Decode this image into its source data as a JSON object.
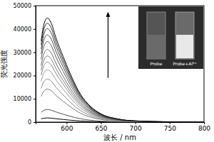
{
  "chart_data": {
    "type": "line",
    "x_label": "波长 / nm",
    "y_label": "荧光强度",
    "annotations": [
      "Probe",
      "Probe+Al³⁺"
    ],
    "x": [
      563,
      567,
      572,
      577,
      585,
      595,
      605,
      620,
      635,
      650,
      675,
      700,
      750,
      800
    ],
    "xlim": [
      555,
      800
    ],
    "xticks": [
      600,
      650,
      700,
      750,
      800
    ],
    "ylim": [
      0,
      50000
    ],
    "yticks": [
      0,
      10000,
      20000,
      30000,
      40000,
      50000
    ],
    "series": [
      {
        "color": "#000000",
        "values": [
          1404,
          1692,
          1800,
          1728,
          1440,
          1134,
          846,
          486,
          270,
          144,
          54,
          22,
          5,
          2
        ]
      },
      {
        "color": "#555555",
        "values": [
          4212,
          5076,
          5400,
          5184,
          4320,
          3402,
          2538,
          1458,
          810,
          432,
          162,
          65,
          16,
          5
        ]
      },
      {
        "color": "#777777",
        "values": [
          11076,
          13348,
          14200,
          13632,
          11360,
          8946,
          6674,
          3834,
          2130,
          1136,
          426,
          170,
          43,
          14
        ]
      },
      {
        "color": "#888888",
        "values": [
          14430,
          17390,
          18500,
          17760,
          14800,
          11655,
          8695,
          4995,
          2775,
          1480,
          555,
          222,
          56,
          19
        ]
      },
      {
        "color": "#999999",
        "values": [
          17550,
          21150,
          22500,
          21600,
          18000,
          14175,
          10575,
          6075,
          3375,
          1800,
          675,
          270,
          68,
          23
        ]
      },
      {
        "color": "#8a8a8a",
        "values": [
          20124,
          24252,
          25800,
          24768,
          20640,
          16254,
          12126,
          6966,
          3870,
          2064,
          774,
          310,
          77,
          26
        ]
      },
      {
        "color": "#7a7a7a",
        "values": [
          22152,
          26696,
          28400,
          27264,
          22720,
          17892,
          13348,
          7668,
          4260,
          2272,
          852,
          341,
          85,
          28
        ]
      },
      {
        "color": "#6a6a6a",
        "values": [
          24336,
          29328,
          31200,
          29952,
          24960,
          19656,
          14664,
          8424,
          4680,
          2496,
          936,
          374,
          94,
          31
        ]
      },
      {
        "color": "#5a5a5a",
        "values": [
          26988,
          32524,
          34600,
          33216,
          27680,
          21798,
          16262,
          9342,
          5190,
          2768,
          1038,
          415,
          104,
          35
        ]
      },
      {
        "color": "#4a4a4a",
        "values": [
          29250,
          35250,
          37500,
          36000,
          30000,
          23625,
          17625,
          10125,
          5625,
          3000,
          1125,
          450,
          113,
          38
        ]
      },
      {
        "color": "#3a3a3a",
        "values": [
          31356,
          37788,
          40200,
          38592,
          32160,
          25326,
          18894,
          10854,
          6030,
          3216,
          1206,
          482,
          121,
          40
        ]
      },
      {
        "color": "#2a2a2a",
        "values": [
          33150,
          39950,
          42500,
          40800,
          34000,
          26775,
          19975,
          11475,
          6375,
          3400,
          1275,
          510,
          128,
          43
        ]
      },
      {
        "color": "#000000",
        "values": [
          34866,
          42018,
          44700,
          42912,
          35760,
          28161,
          21009,
          12069,
          6705,
          3576,
          1341,
          536,
          134,
          45
        ]
      }
    ]
  }
}
